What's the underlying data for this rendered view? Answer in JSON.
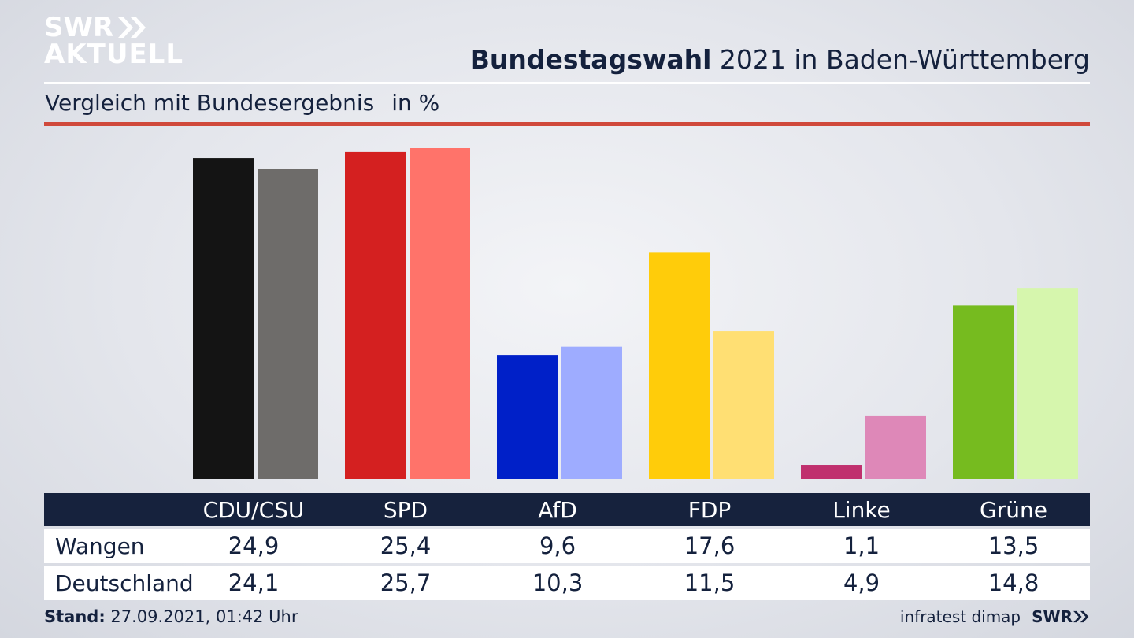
{
  "logo": {
    "line1": "SWR",
    "line2": "AKTUELL"
  },
  "header": {
    "title_bold": "Bundestagswahl",
    "title_rest": " 2021 in Baden-Württemberg",
    "subtitle": "Vergleich mit Bundesergebnis",
    "unit": "in %"
  },
  "chart_data": {
    "type": "bar",
    "categories": [
      "CDU/CSU",
      "SPD",
      "AfD",
      "FDP",
      "Linke",
      "Grüne"
    ],
    "series": [
      {
        "name": "Wangen",
        "values": [
          24.9,
          25.4,
          9.6,
          17.6,
          1.1,
          13.5
        ],
        "colors": [
          "#141414",
          "#d42020",
          "#0020c8",
          "#ffcc0a",
          "#c0306e",
          "#76bb1f"
        ]
      },
      {
        "name": "Deutschland",
        "values": [
          24.1,
          25.7,
          10.3,
          11.5,
          4.9,
          14.8
        ],
        "colors": [
          "#6e6c6a",
          "#ff736a",
          "#9eacff",
          "#ffdf73",
          "#de88b8",
          "#d6f6ad"
        ]
      }
    ],
    "ylim": [
      0,
      26
    ],
    "grid": false
  },
  "table": {
    "headers": [
      "CDU/CSU",
      "SPD",
      "AfD",
      "FDP",
      "Linke",
      "Grüne"
    ],
    "rows": [
      {
        "label": "Wangen",
        "values": [
          "24,9",
          "25,4",
          "9,6",
          "17,6",
          "1,1",
          "13,5"
        ]
      },
      {
        "label": "Deutschland",
        "values": [
          "24,1",
          "25,7",
          "10,3",
          "11,5",
          "4,9",
          "14,8"
        ]
      }
    ]
  },
  "footer": {
    "stand_label": "Stand:",
    "stand_value": " 27.09.2021, 01:42 Uhr",
    "source": "infratest dimap",
    "brand": "SWR"
  }
}
